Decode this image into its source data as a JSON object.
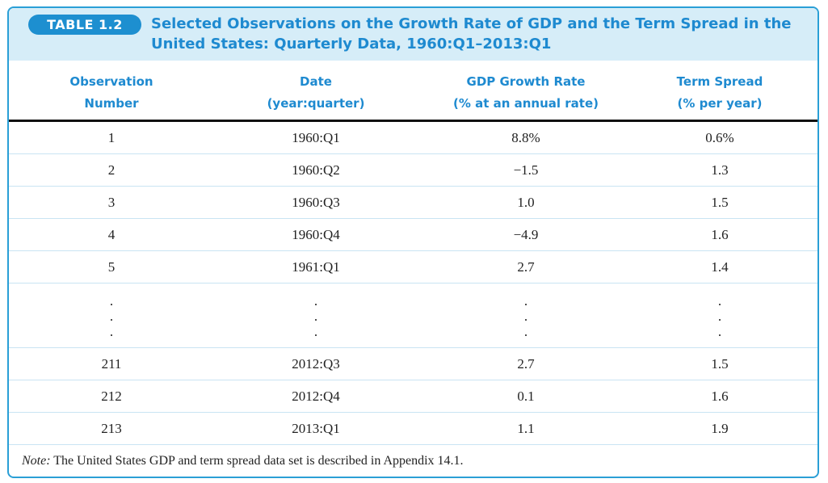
{
  "table": {
    "badge": "TABLE 1.2",
    "title": "Selected Observations on the Growth Rate of GDP and the Term Spread in the United States: Quarterly Data, 1960:Q1–2013:Q1",
    "columns": [
      {
        "line1": "Observation",
        "line2": "Number"
      },
      {
        "line1": "Date",
        "line2": "(year:quarter)"
      },
      {
        "line1": "GDP Growth Rate",
        "line2": "(% at an annual rate)"
      },
      {
        "line1": "Term Spread",
        "line2": "(% per year)"
      }
    ],
    "rows_top": [
      [
        "1",
        "1960:Q1",
        "8.8%",
        "0.6%"
      ],
      [
        "2",
        "1960:Q2",
        "−1.5",
        "1.3"
      ],
      [
        "3",
        "1960:Q3",
        "1.0",
        "1.5"
      ],
      [
        "4",
        "1960:Q4",
        "−4.9",
        "1.6"
      ],
      [
        "5",
        "1961:Q1",
        "2.7",
        "1.4"
      ]
    ],
    "ellipsis": ".",
    "rows_bottom": [
      [
        "211",
        "2012:Q3",
        "2.7",
        "1.5"
      ],
      [
        "212",
        "2012:Q4",
        "0.1",
        "1.6"
      ],
      [
        "213",
        "2013:Q1",
        "1.1",
        "1.9"
      ]
    ],
    "note_label": "Note:",
    "note_text": " The United States GDP and term spread data set is described in Appendix 14.1."
  }
}
